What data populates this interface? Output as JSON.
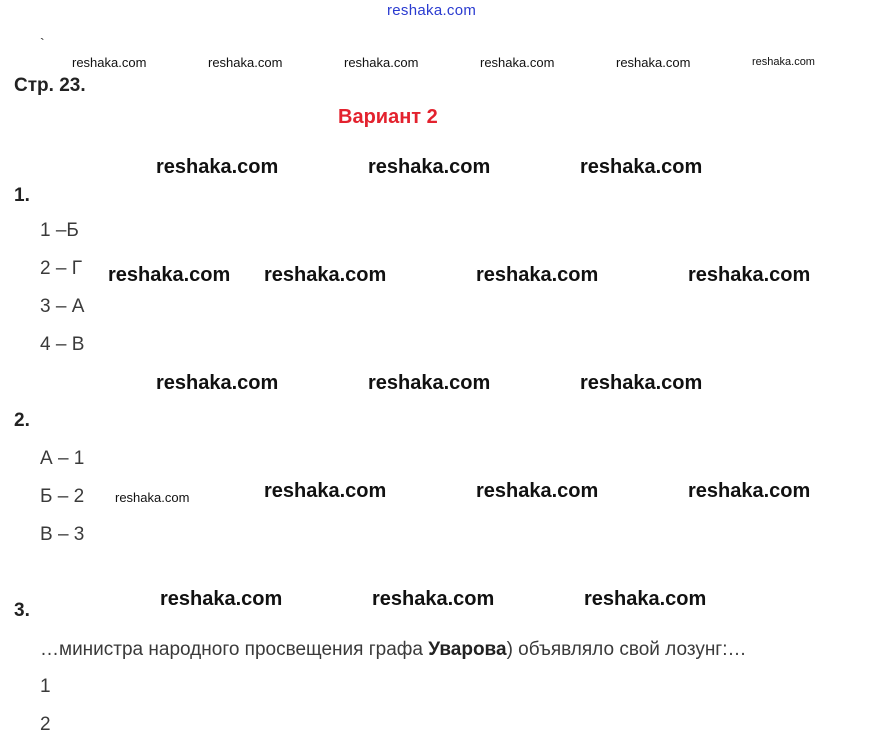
{
  "watermark_top": "reshaka.com",
  "watermark": "reshaka.com",
  "page_label": "Стр. 23.",
  "variant_title": "Вариант 2",
  "tasks": [
    {
      "number": "1.",
      "answers": [
        "1 –Б",
        "2 – Г",
        "3 – А",
        "4 – В"
      ]
    },
    {
      "number": "2.",
      "answers": [
        "А – 1",
        "Б – 2",
        "В – 3"
      ]
    },
    {
      "number": "3.",
      "text_before": "…министра народного просвещения графа ",
      "text_bold": "Уварова",
      "text_after": ") объявляло свой лозунг:…",
      "answers": [
        "1",
        "2"
      ]
    }
  ],
  "colors": {
    "variant_title": "#e3222e",
    "watermark_top": "#2a3bd0"
  }
}
